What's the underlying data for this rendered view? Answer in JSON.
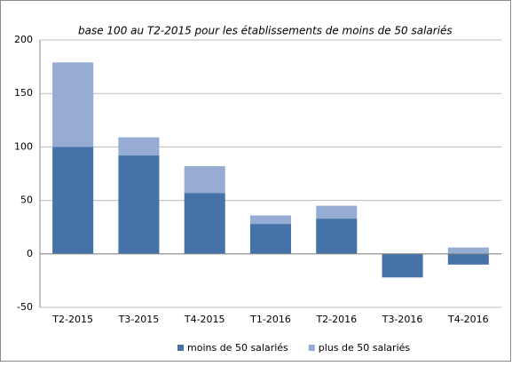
{
  "chart_data": {
    "type": "stacked-bar",
    "title": "base 100 au T2-2015 pour les établissements de moins de 50 salariés",
    "categories": [
      "T2-2015",
      "T3-2015",
      "T4-2015",
      "T1-2016",
      "T2-2016",
      "T3-2016",
      "T4-2016"
    ],
    "series": [
      {
        "name": "moins de 50 salariés",
        "color": "#4572a7",
        "values": [
          100,
          92,
          57,
          28,
          33,
          -22,
          -10
        ]
      },
      {
        "name": "plus de 50 salariés",
        "color": "#97acd2",
        "values": [
          79,
          17,
          25,
          8,
          12,
          0,
          6
        ]
      }
    ],
    "ylim": [
      -50,
      200
    ],
    "yticks": [
      -50,
      0,
      50,
      100,
      150,
      200
    ],
    "grid": true,
    "legend": "bottom"
  }
}
